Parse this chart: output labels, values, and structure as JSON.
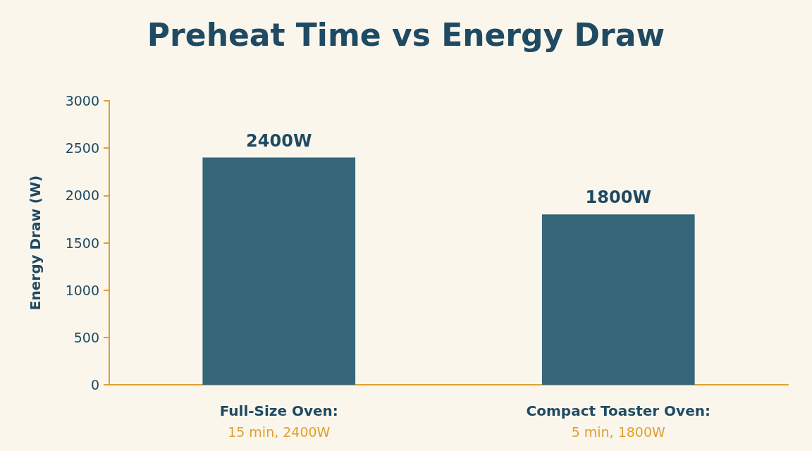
{
  "chart_data": {
    "type": "bar",
    "title": "Preheat Time vs Energy Draw",
    "ylabel": "Energy Draw (W)",
    "categories": [
      "Full-Size Oven:\n15 min, 2400W",
      "Compact Toaster Oven:\n5 min, 1800W"
    ],
    "values": [
      2400,
      1800
    ],
    "color": "#35667a",
    "value_labels": [
      "2400W",
      "1800W"
    ],
    "ylim": [
      0,
      3000
    ],
    "yticks": [
      0,
      500,
      1000,
      1500,
      2000,
      2500,
      3000
    ],
    "grid": false
  }
}
